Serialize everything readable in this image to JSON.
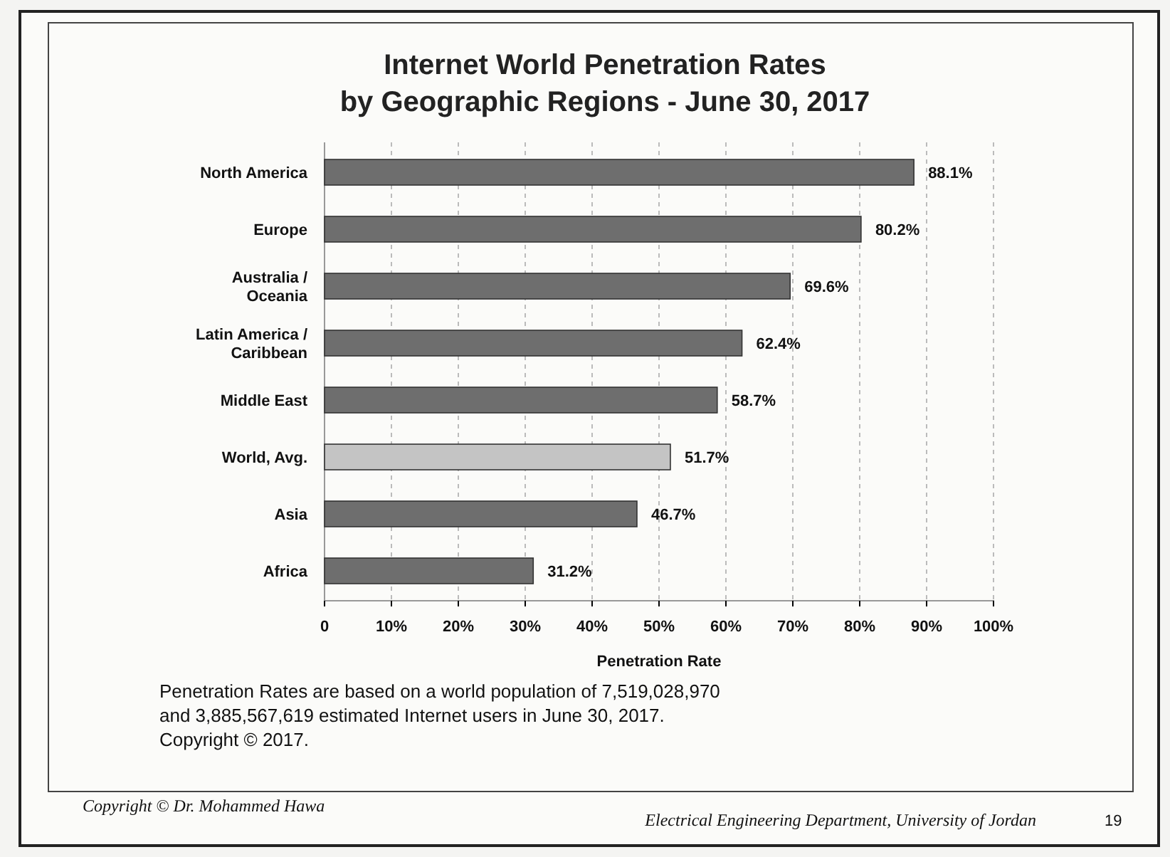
{
  "chart_data": {
    "type": "bar",
    "orientation": "horizontal",
    "title": "Internet World Penetration Rates",
    "subtitle": "by Geographic Regions - June 30, 2017",
    "xlabel": "Penetration Rate",
    "categories": [
      "North America",
      "Europe",
      "Australia / Oceania",
      "Latin America / Caribbean",
      "Middle East",
      "World, Avg.",
      "Asia",
      "Africa"
    ],
    "values": [
      88.1,
      80.2,
      69.6,
      62.4,
      58.7,
      51.7,
      46.7,
      31.2
    ],
    "colors": [
      "#6e6e6e",
      "#6e6e6e",
      "#6e6e6e",
      "#6e6e6e",
      "#6e6e6e",
      "#c4c4c4",
      "#6e6e6e",
      "#6e6e6e"
    ],
    "value_labels": [
      "88.1%",
      "80.2%",
      "69.6%",
      "62.4%",
      "58.7%",
      "51.7%",
      "46.7%",
      "31.2%"
    ],
    "xlim": [
      0,
      100
    ],
    "xticks": [
      0,
      {
        "value": 10,
        "label": "10%"
      },
      {
        "value": 20,
        "label": "20%"
      },
      {
        "value": 30,
        "label": "30%"
      },
      {
        "value": 40,
        "label": "40%"
      },
      {
        "value": 50,
        "label": "50%"
      },
      {
        "value": 60,
        "label": "60%"
      },
      {
        "value": 70,
        "label": "70%"
      },
      {
        "value": 80,
        "label": "80%"
      },
      {
        "value": 90,
        "label": "90%"
      },
      {
        "value": 100,
        "label": "100%"
      }
    ],
    "grid": "x",
    "annotations": [
      "Penetration Rates are based on a world population of 7,519,028,970",
      "and 3,885,567,619 estimated Internet users in June 30, 2017.",
      "Copyright © 2017.",
      "Copyright © Dr. Mohammed Hawa",
      "Electrical Engineering Department, University of Jordan",
      "19"
    ]
  }
}
